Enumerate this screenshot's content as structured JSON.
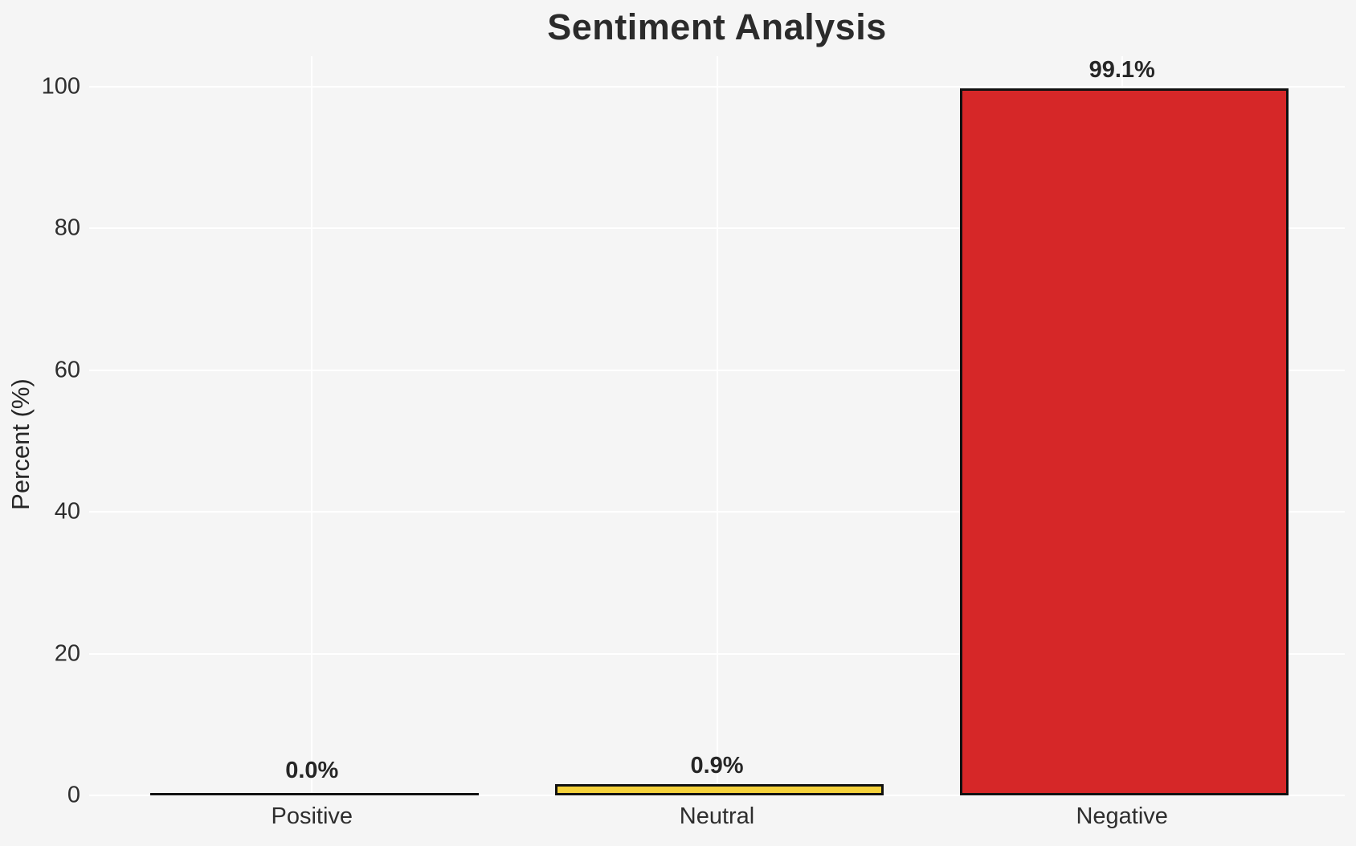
{
  "title": "Sentiment Analysis",
  "y_axis": {
    "label": "Percent (%)",
    "ticks": [
      0,
      20,
      40,
      60,
      80,
      100
    ]
  },
  "chart_data": {
    "type": "bar",
    "title": "Sentiment Analysis",
    "categories": [
      "Positive",
      "Neutral",
      "Negative"
    ],
    "values": [
      0.0,
      0.9,
      99.1
    ],
    "bar_labels": [
      "0.0%",
      "0.9%",
      "99.1%"
    ],
    "bar_colors": [
      "none",
      "#f4d13b",
      "#d62728"
    ],
    "bar_edge_color": "#111111",
    "xlabel": "",
    "ylabel": "Percent (%)",
    "ylim": [
      0,
      104
    ],
    "yticks": [
      0,
      20,
      40,
      60,
      80,
      100
    ],
    "grid": "both",
    "gridline_color": "#ffffff",
    "background_color": "#f5f5f5",
    "text_color": "#262626",
    "legend": "none"
  }
}
